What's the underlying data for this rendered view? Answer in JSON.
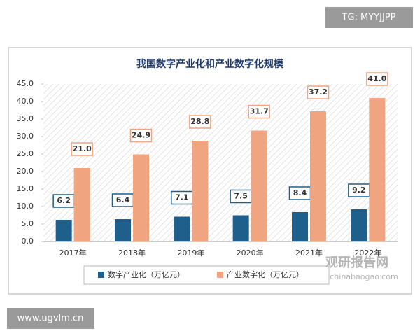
{
  "chart_data": {
    "type": "bar",
    "title": "我国数字产业化和产业数字化规模",
    "categories": [
      "2017年",
      "2018年",
      "2019年",
      "2020年",
      "2021年",
      "2022年"
    ],
    "series": [
      {
        "name": "数字产业化（万亿元）",
        "color": "#1f5f8b",
        "values": [
          6.2,
          6.4,
          7.1,
          7.5,
          8.4,
          9.2
        ]
      },
      {
        "name": "产业数字化（万亿元）",
        "color": "#f0a47f",
        "values": [
          21.0,
          24.9,
          28.8,
          31.7,
          37.2,
          41.0
        ],
        "value_labels": [
          "21.0",
          "24.9",
          "28.8",
          "31.7",
          "37.2",
          "41.0"
        ]
      }
    ],
    "ylim": [
      0,
      45
    ],
    "yticks": [
      {
        "value": 0,
        "label": "0.0"
      },
      {
        "value": 5,
        "label": "5.0"
      },
      {
        "value": 10,
        "label": "10.0"
      },
      {
        "value": 15,
        "label": "15.0"
      },
      {
        "value": 20,
        "label": "20.0"
      },
      {
        "value": 25,
        "label": "25.0"
      },
      {
        "value": 30,
        "label": "30.0"
      },
      {
        "value": 35,
        "label": "35.0"
      },
      {
        "value": 40,
        "label": "40.0"
      },
      {
        "value": 45,
        "label": "45.0"
      }
    ],
    "legend": "bottom"
  },
  "watermarks": {
    "top_right": "TG: MYYJJPP",
    "bottom_left": "www.ugvlm.cn",
    "brand": "观研报告网",
    "brand_url": "chinabaogao.com"
  }
}
